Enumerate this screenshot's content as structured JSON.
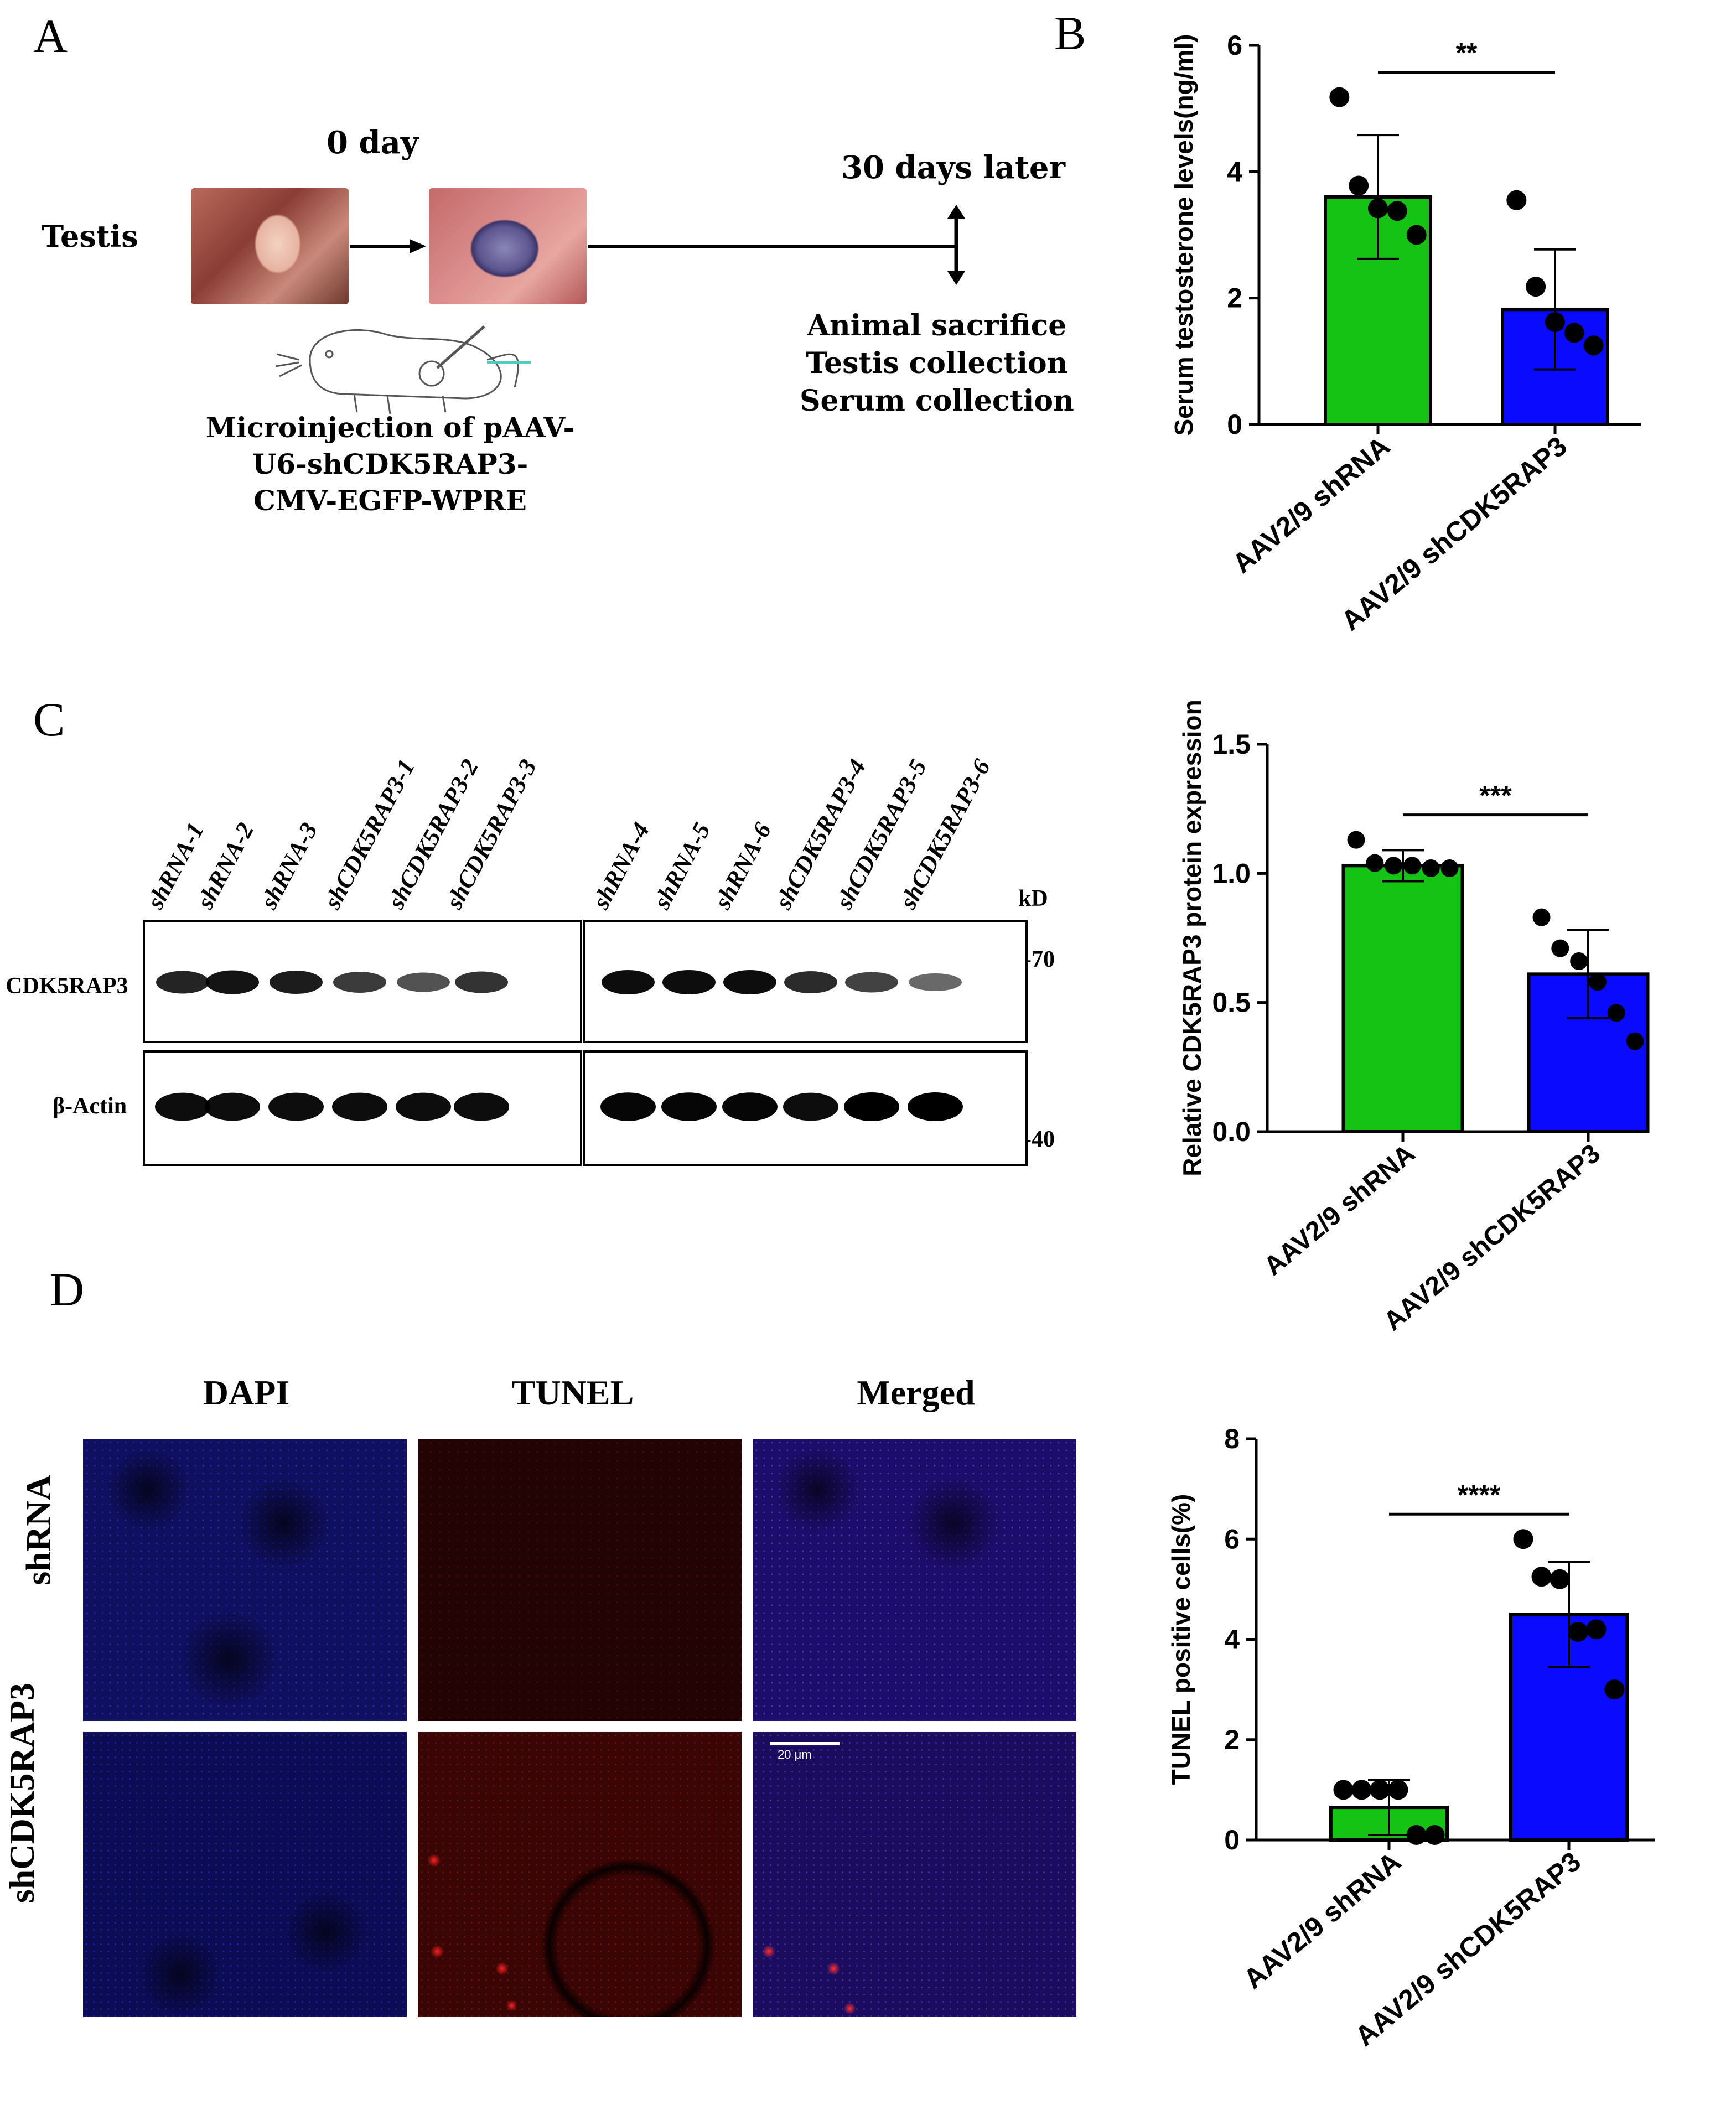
{
  "figure": {
    "panels": {
      "a": "A",
      "b": "B",
      "c": "C",
      "d": "D"
    }
  },
  "panel_a": {
    "day0": "0 day",
    "day30": "30 days later",
    "testis": "Testis",
    "outcomes": [
      "Animal sacrifice",
      "Testis collection",
      "Serum collection"
    ],
    "microinjection": [
      "Microinjection of pAAV-",
      "U6-shCDK5RAP3-",
      "CMV-EGFP-WPRE"
    ]
  },
  "panel_c": {
    "lanes": [
      "shRNA-1",
      "shRNA-2",
      "shRNA-3",
      "shCDK5RAP3-1",
      "shCDK5RAP3-2",
      "shCDK5RAP3-3",
      "shRNA-4",
      "shRNA-5",
      "shRNA-6",
      "shCDK5RAP3-4",
      "shCDK5RAP3-5",
      "shCDK5RAP3-6"
    ],
    "kd": "kD",
    "marker_70": "-70",
    "marker_40": "-40",
    "row1": "CDK5RAP3",
    "row2": "β-Actin",
    "cdk_intensity": [
      0.85,
      0.95,
      0.9,
      0.7,
      0.55,
      0.75,
      1.0,
      1.0,
      1.0,
      0.8,
      0.65,
      0.4
    ],
    "actin_intensity": [
      0.9,
      0.9,
      0.9,
      0.9,
      0.9,
      0.9,
      0.95,
      0.95,
      0.95,
      0.9,
      1.0,
      1.0
    ]
  },
  "panel_d": {
    "cols": [
      "DAPI",
      "TUNEL",
      "Merged"
    ],
    "rows": [
      "shRNA",
      "shCDK5RAP3"
    ],
    "scale_bar": "20 μm"
  },
  "colors": {
    "green": "#14c314",
    "blue": "#0a0aff",
    "dapi": "#1a1aa8",
    "tunel": "#8a0a0a"
  },
  "chart_data": [
    {
      "type": "bar",
      "panel": "B",
      "categories": [
        "AAV2/9 shRNA",
        "AAV2/9 shCDK5RAP3"
      ],
      "values": [
        3.6,
        1.82
      ],
      "errors": [
        0.98,
        0.95
      ],
      "points": [
        [
          5.18,
          3.78,
          3.42,
          3.38,
          3.0
        ],
        [
          3.55,
          2.18,
          1.62,
          1.45,
          1.25
        ]
      ],
      "ylabel": "Serum testosterone levels(ng/ml)",
      "ylim": [
        0,
        6
      ],
      "yticks": [
        0,
        2,
        4,
        6
      ],
      "significance": "**"
    },
    {
      "type": "bar",
      "panel": "C",
      "categories": [
        "AAV2/9 shRNA",
        "AAV2/9 shCDK5RAP3"
      ],
      "values": [
        1.03,
        0.61
      ],
      "errors": [
        0.06,
        0.17
      ],
      "points": [
        [
          1.13,
          1.04,
          1.03,
          1.03,
          1.02,
          1.02
        ],
        [
          0.83,
          0.71,
          0.66,
          0.58,
          0.46,
          0.35
        ]
      ],
      "ylabel": "Relative CDK5RAP3 protein expression",
      "ylim": [
        0,
        1.5
      ],
      "yticks": [
        "0.0",
        "0.5",
        "1.0",
        "1.5"
      ],
      "significance": "***"
    },
    {
      "type": "bar",
      "panel": "D",
      "categories": [
        "AAV2/9 shRNA",
        "AAV2/9  shCDK5RAP3"
      ],
      "values": [
        0.65,
        4.5
      ],
      "errors": [
        0.55,
        1.05
      ],
      "points": [
        [
          1.0,
          1.0,
          1.0,
          1.0,
          0.1,
          0.1
        ],
        [
          6.0,
          5.25,
          5.2,
          4.15,
          4.2,
          3.0
        ]
      ],
      "ylabel": "TUNEL positive cells(%)",
      "ylim": [
        0,
        8
      ],
      "yticks": [
        0,
        2,
        4,
        6,
        8
      ],
      "significance": "****"
    }
  ]
}
